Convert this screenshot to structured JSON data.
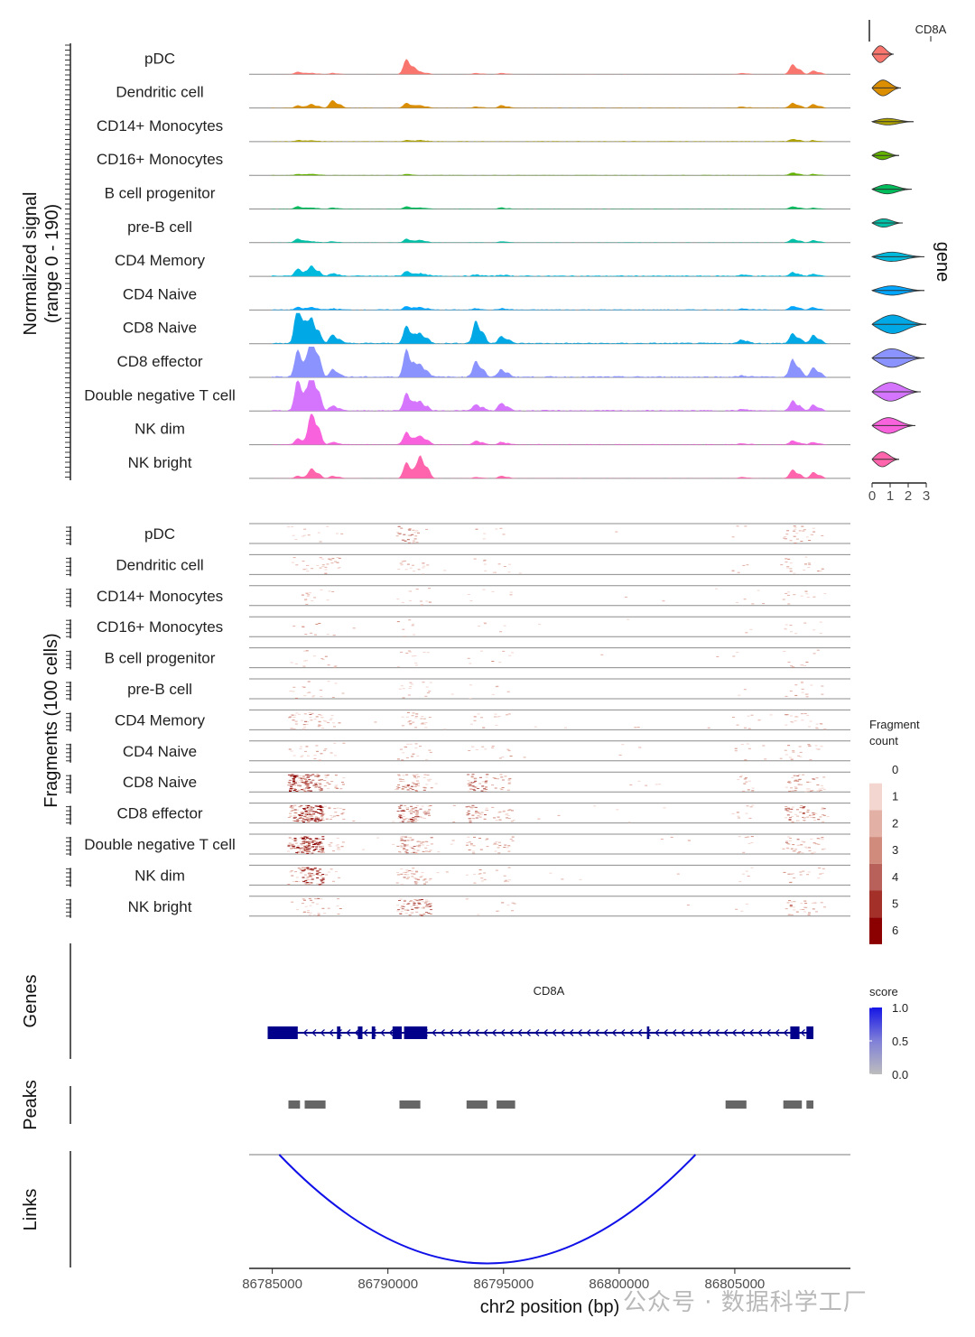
{
  "chart_data": {
    "type": "area",
    "gene": "CD8A",
    "region": {
      "chrom": "chr2",
      "start": 86784000,
      "end": 86810000
    },
    "cell_types": [
      "pDC",
      "Dendritic cell",
      "CD14+ Monocytes",
      "CD16+ Monocytes",
      "B cell progenitor",
      "pre-B cell",
      "CD4 Memory",
      "CD4 Naive",
      "CD8 Naive",
      "CD8 effector",
      "Double negative T cell",
      "NK dim",
      "NK bright"
    ],
    "colors": [
      "#F8766D",
      "#DB8E00",
      "#AEA200",
      "#64B200",
      "#00BD5C",
      "#00C1A7",
      "#00BADE",
      "#00A6FF",
      "#00A9E5",
      "#8B93FF",
      "#D575FE",
      "#F962DD",
      "#FF65AC"
    ],
    "coverage": {
      "ylabel": "Normalized signal\n(range 0 - 190)",
      "range": [
        0,
        190
      ],
      "peaks_x": [
        86786100,
        86786700,
        86787600,
        86790800,
        86791400,
        86793800,
        86794900,
        86805300,
        86807500,
        86808400
      ],
      "heights": [
        [
          2,
          1,
          1,
          12,
          2,
          1,
          1,
          1,
          8,
          3
        ],
        [
          2,
          3,
          6,
          4,
          2,
          1,
          2,
          1,
          4,
          3
        ],
        [
          1,
          1,
          0,
          1,
          1,
          0,
          0,
          0,
          2,
          1
        ],
        [
          1,
          1,
          0,
          1,
          0,
          0,
          0,
          0,
          2,
          1
        ],
        [
          2,
          1,
          1,
          2,
          1,
          0,
          1,
          0,
          2,
          1
        ],
        [
          3,
          1,
          1,
          3,
          2,
          0,
          1,
          0,
          3,
          2
        ],
        [
          6,
          8,
          2,
          4,
          2,
          1,
          1,
          1,
          3,
          2
        ],
        [
          2,
          2,
          1,
          3,
          2,
          1,
          1,
          1,
          3,
          2
        ],
        [
          34,
          20,
          7,
          14,
          8,
          18,
          6,
          3,
          8,
          7
        ],
        [
          22,
          35,
          6,
          22,
          10,
          13,
          6,
          1,
          14,
          8
        ],
        [
          26,
          32,
          4,
          14,
          7,
          5,
          6,
          1,
          8,
          5
        ],
        [
          5,
          28,
          2,
          10,
          7,
          3,
          2,
          1,
          3,
          2
        ],
        [
          2,
          8,
          2,
          13,
          18,
          1,
          2,
          1,
          7,
          5
        ]
      ]
    },
    "expression": {
      "title": "CD8A",
      "axis_title": "gene",
      "x_ticks": [
        "0",
        "1",
        "2",
        "3"
      ],
      "max": [
        1.2,
        1.6,
        2.3,
        1.5,
        2.2,
        1.7,
        2.9,
        2.9,
        3.0,
        2.9,
        2.7,
        2.4,
        1.5
      ],
      "widths": [
        0.9,
        0.85,
        0.35,
        0.45,
        0.5,
        0.45,
        0.5,
        0.5,
        1.0,
        1.0,
        1.0,
        0.85,
        0.8
      ]
    },
    "fragments": {
      "ylabel": "Fragments (100 cells)",
      "density": [
        0.15,
        0.3,
        0.45,
        0.3,
        0.3,
        0.3,
        0.7,
        0.55,
        0.8,
        0.9,
        0.85,
        0.5,
        0.2
      ]
    },
    "fragment_legend": {
      "title": "Fragment\ncount",
      "levels": [
        "0",
        "1",
        "2",
        "3",
        "4",
        "5",
        "6"
      ],
      "colors": [
        "#FFFFFF",
        "#F3D6CF",
        "#E2B0A5",
        "#D18B7D",
        "#B8605A",
        "#A33129",
        "#8B0000"
      ]
    },
    "genes_track": {
      "label": "Genes",
      "gene_name": "CD8A",
      "color": "#00008B",
      "span": [
        86784800,
        86808400
      ],
      "exons": [
        [
          86784800,
          86786100
        ],
        [
          86787800,
          86787950
        ],
        [
          86788700,
          86788900
        ],
        [
          86789300,
          86789450
        ],
        [
          86790200,
          86790600
        ],
        [
          86790700,
          86791700
        ],
        [
          86801200,
          86801300
        ],
        [
          86807400,
          86807800
        ],
        [
          86808100,
          86808400
        ]
      ]
    },
    "score_legend": {
      "title": "score",
      "ticks": [
        "1.0",
        "0.5",
        "0.0"
      ],
      "high_color": "#1515E6",
      "low_color": "#BDBDBD"
    },
    "peaks_track": {
      "label": "Peaks",
      "color": "#666666",
      "peaks": [
        [
          86785700,
          86786200
        ],
        [
          86786400,
          86787300
        ],
        [
          86790500,
          86791400
        ],
        [
          86793400,
          86794300
        ],
        [
          86794700,
          86795500
        ],
        [
          86804600,
          86805500
        ],
        [
          86807100,
          86807900
        ],
        [
          86808100,
          86808400
        ]
      ]
    },
    "links_track": {
      "label": "Links",
      "color": "#1010E8",
      "links": [
        {
          "start": 86785300,
          "end": 86803300,
          "score": 1.0
        }
      ]
    },
    "x_axis": {
      "title": "chr2 position (bp)",
      "ticks": [
        86785000,
        86790000,
        86795000,
        86800000,
        86805000
      ],
      "tick_labels": [
        "86785000",
        "86790000",
        "86795000",
        "86800000",
        "86805000"
      ]
    }
  },
  "watermark": "公众号 · 数据科学工厂"
}
